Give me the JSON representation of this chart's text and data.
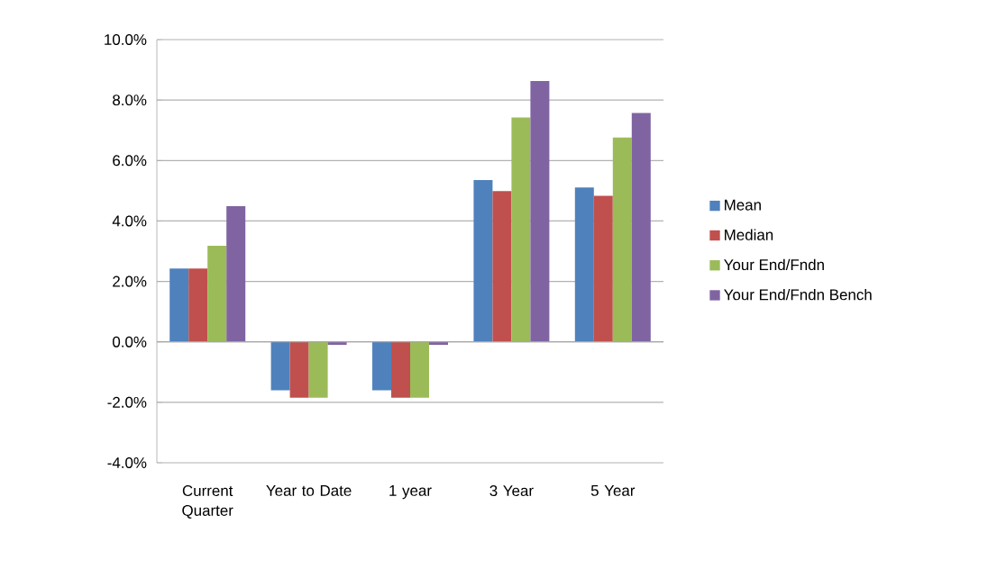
{
  "chart_data": {
    "type": "bar",
    "categories": [
      "Current Quarter",
      "Year to Date",
      "1 year",
      "3 Year",
      "5 Year"
    ],
    "series": [
      {
        "name": "Mean",
        "color": "#4f81bd",
        "values": [
          2.43,
          -1.6,
          -1.6,
          5.35,
          5.11
        ]
      },
      {
        "name": "Median",
        "color": "#c0504d",
        "values": [
          2.43,
          -1.85,
          -1.85,
          4.99,
          4.83
        ]
      },
      {
        "name": "Your End/Fndn",
        "color": "#9bbb59",
        "values": [
          3.18,
          -1.85,
          -1.85,
          7.42,
          6.76
        ]
      },
      {
        "name": "Your End/Fndn Bench",
        "color": "#8064a2",
        "values": [
          4.49,
          -0.1,
          -0.1,
          8.63,
          7.57
        ]
      }
    ],
    "ylim": [
      -4,
      10
    ],
    "yticks": [
      {
        "value": -4,
        "label": "-4.0%"
      },
      {
        "value": -2,
        "label": "-2.0%"
      },
      {
        "value": 0,
        "label": "0.0%"
      },
      {
        "value": 2,
        "label": "2.0%"
      },
      {
        "value": 4,
        "label": "4.0%"
      },
      {
        "value": 6,
        "label": "6.0%"
      },
      {
        "value": 8,
        "label": "8.0%"
      },
      {
        "value": 10,
        "label": "10.0%"
      }
    ],
    "grid": "y",
    "legend": "right"
  }
}
